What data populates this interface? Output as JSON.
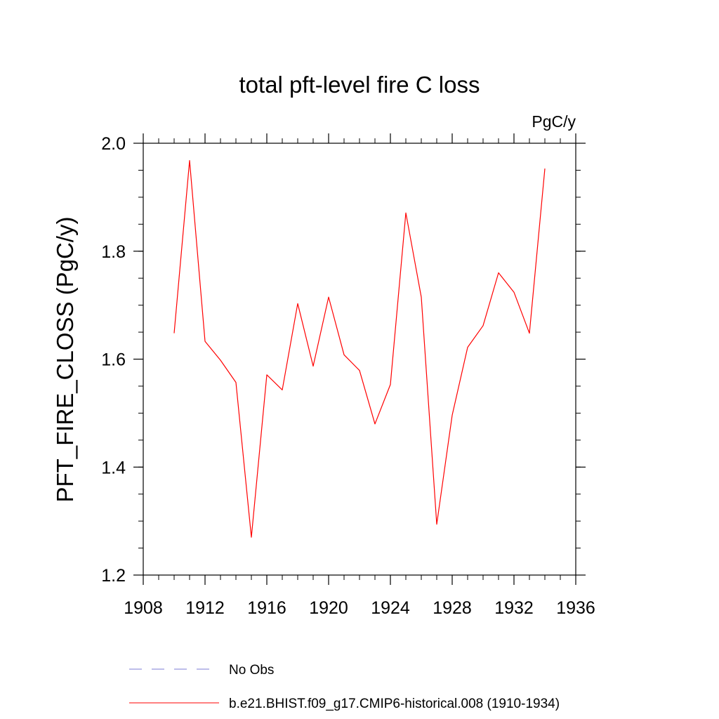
{
  "chart_data": {
    "type": "line",
    "title": "total pft-level fire C loss",
    "units": "PgC/y",
    "ylabel": "PFT_FIRE_CLOSS  (PgC/y)",
    "xlabel": "",
    "xlim": [
      1908,
      1936
    ],
    "ylim": [
      1.2,
      2.0
    ],
    "x_ticks": [
      1908,
      1912,
      1916,
      1920,
      1924,
      1928,
      1932,
      1936
    ],
    "x_tick_labels": [
      "1908",
      "1912",
      "1916",
      "1920",
      "1924",
      "1928",
      "1932",
      "1936"
    ],
    "y_ticks": [
      1.2,
      1.4,
      1.6,
      1.8,
      2.0
    ],
    "y_tick_labels": [
      "1.2",
      "1.4",
      "1.6",
      "1.8",
      "2.0"
    ],
    "y_minor_step": 0.05,
    "x_minor_step": 1,
    "grid": false,
    "legend_position": "bottom",
    "series": [
      {
        "name": "b.e21.BHIST.f09_g17.CMIP6-historical.008 (1910-1934)",
        "color": "#ff0000",
        "style": "solid",
        "x": [
          1910,
          1911,
          1912,
          1913,
          1914,
          1915,
          1916,
          1917,
          1918,
          1919,
          1920,
          1921,
          1922,
          1923,
          1924,
          1925,
          1926,
          1927,
          1928,
          1929,
          1930,
          1931,
          1932,
          1933,
          1934
        ],
        "values": [
          1.648,
          1.968,
          1.633,
          1.598,
          1.557,
          1.27,
          1.571,
          1.543,
          1.703,
          1.587,
          1.715,
          1.608,
          1.579,
          1.48,
          1.553,
          1.871,
          1.715,
          1.294,
          1.496,
          1.622,
          1.662,
          1.76,
          1.724,
          1.648,
          1.953
        ]
      }
    ],
    "legend": [
      {
        "label": "No Obs",
        "color": "#7b7bd6",
        "style": "dashed"
      },
      {
        "label": "b.e21.BHIST.f09_g17.CMIP6-historical.008 (1910-1934)",
        "color": "#ff0000",
        "style": "solid"
      }
    ]
  }
}
